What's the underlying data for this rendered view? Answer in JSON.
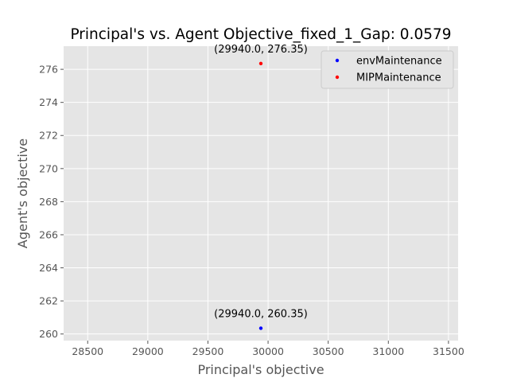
{
  "chart_data": {
    "type": "scatter",
    "title": "Principal's vs. Agent Objective_fixed_1_Gap: 0.0579",
    "xlabel": "Principal's objective",
    "ylabel": "Agent's objective",
    "xlim": [
      28300,
      31580
    ],
    "ylim": [
      259.6,
      277.4
    ],
    "x_ticks": [
      28500,
      29000,
      29500,
      30000,
      30500,
      31000,
      31500
    ],
    "y_ticks": [
      260,
      262,
      264,
      266,
      268,
      270,
      272,
      274,
      276
    ],
    "grid": true,
    "legend_position": "top-right",
    "series": [
      {
        "name": "envMaintenance",
        "color": "#0000ff",
        "points": [
          {
            "x": 29940.0,
            "y": 260.35,
            "label": "(29940.0, 260.35)"
          }
        ]
      },
      {
        "name": "MIPMaintenance",
        "color": "#ff0000",
        "points": [
          {
            "x": 29940.0,
            "y": 276.35,
            "label": "(29940.0, 276.35)"
          }
        ]
      }
    ]
  }
}
